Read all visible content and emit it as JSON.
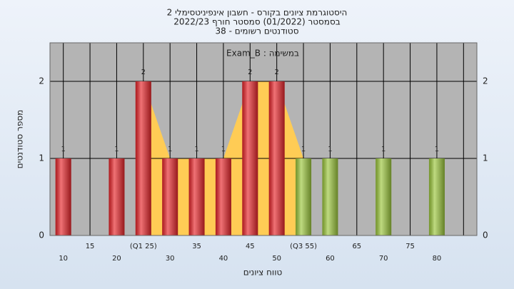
{
  "chart_data": {
    "type": "bar",
    "title": [
      "היסטוגרמת ציונים בקורס - חשבון אינפיניטסימלי 2",
      "בסמסטר  (01/2022)  סמסטר חורף 2022/23",
      "סטודנטים רשומים - 38"
    ],
    "annotation": "Exam_B : במשימה",
    "x_label": "טווח ציונים",
    "y_label": "מספר סטודנטים",
    "categories": [
      "10",
      "15",
      "20",
      "(Q1 25)",
      "30",
      "35",
      "40",
      "45",
      "50",
      "(Q3 55)",
      "60",
      "65",
      "70",
      "75",
      "80",
      null
    ],
    "values": [
      1,
      0,
      1,
      2,
      1,
      1,
      1,
      2,
      2,
      1,
      1,
      0,
      1,
      0,
      1,
      0
    ],
    "colors": [
      "#e8262b",
      "#e8262b",
      "#e8262b",
      "#e8262b",
      "#e8262b",
      "#e8262b",
      "#e8262b",
      "#e8262b",
      "#e8262b",
      "#9cc73c",
      "#9cc73c",
      "#9cc73c",
      "#9cc73c",
      "#9cc73c",
      "#9cc73c",
      "#9cc73c"
    ],
    "area_color": "#ffcc55",
    "ylim": [
      0,
      2.5
    ],
    "yticks": [
      0,
      1,
      2
    ],
    "grid": true
  }
}
